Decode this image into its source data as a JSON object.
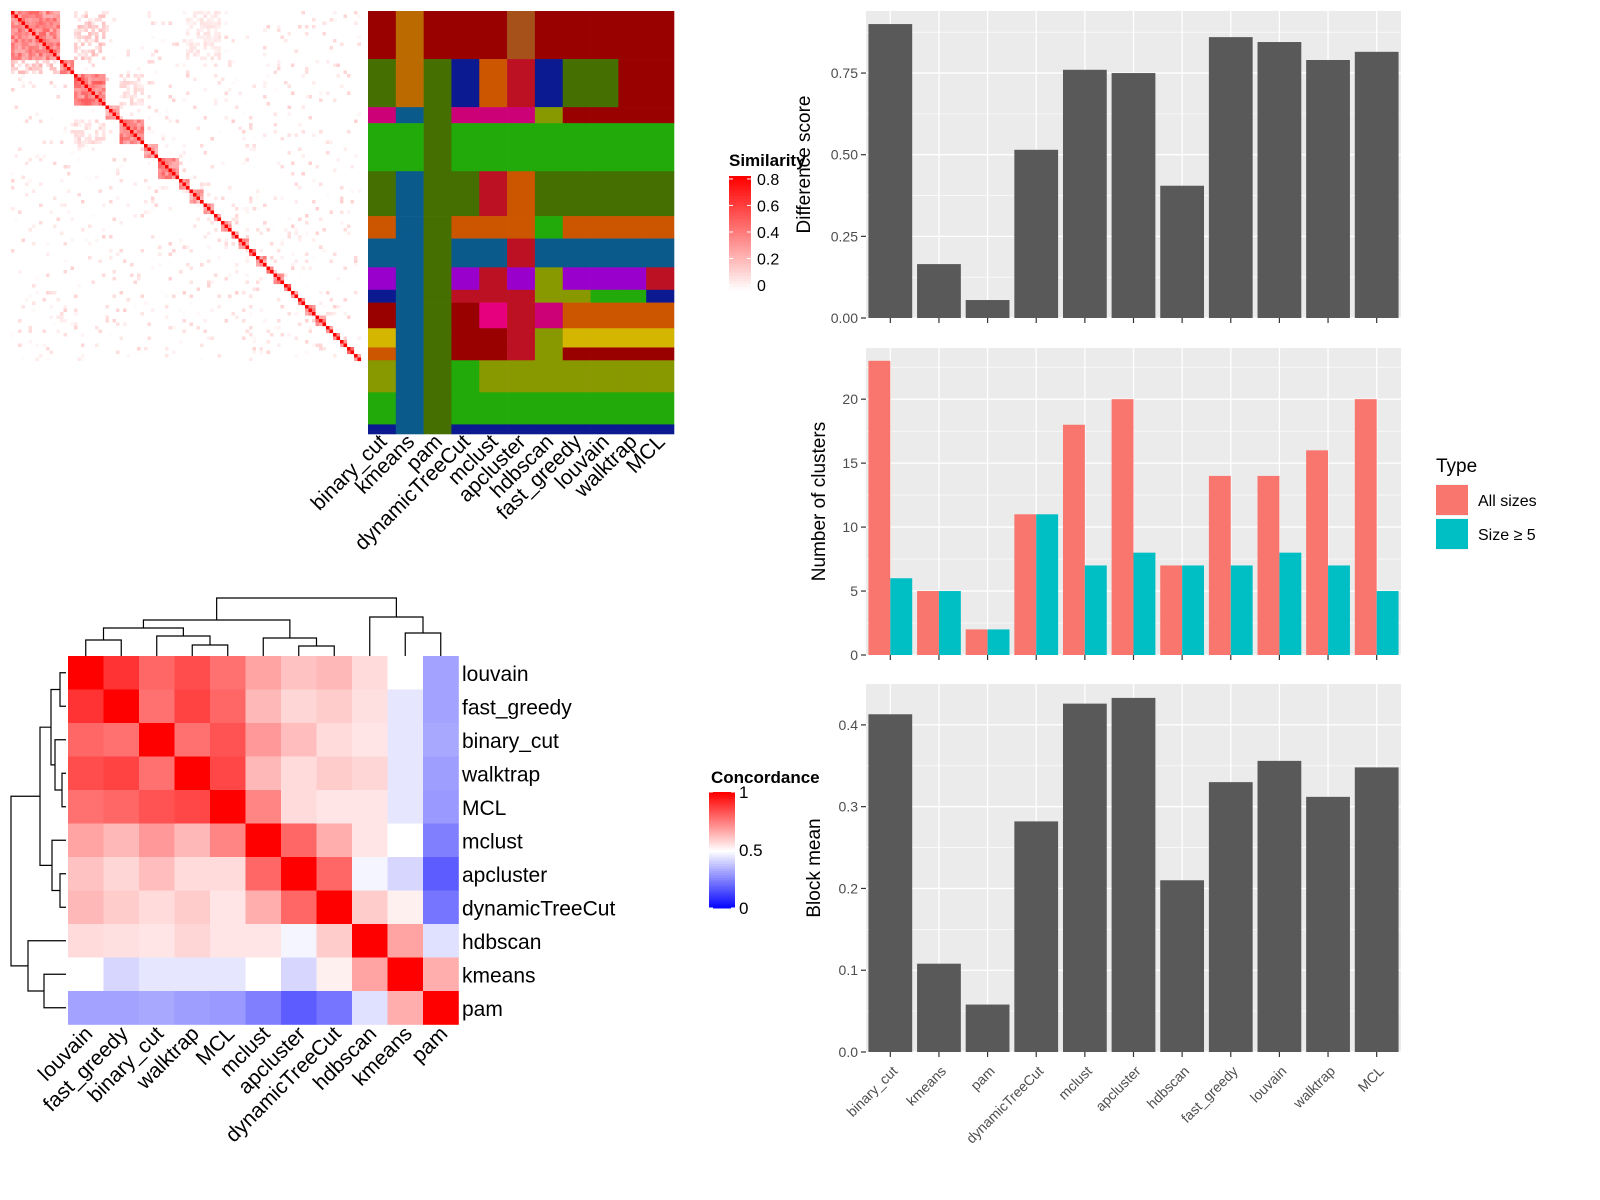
{
  "chart_data": [
    {
      "type": "heatmap",
      "panel": "similarity",
      "legend_title": "Similarity",
      "color_ramp": [
        "#ffffff",
        "#ff0000"
      ],
      "legend_ticks": [
        "0.8",
        "0.6",
        "0.4",
        "0.2",
        "0"
      ],
      "cell_ticks": [
        0.8,
        0.6,
        0.4,
        0.2,
        0
      ],
      "blocks": [
        [
          0,
          14,
          0.55
        ],
        [
          14,
          18,
          0.5
        ],
        [
          18,
          27,
          0.6
        ],
        [
          27,
          31,
          0.45
        ],
        [
          31,
          38,
          0.55
        ],
        [
          38,
          42,
          0.5
        ],
        [
          42,
          48,
          0.55
        ],
        [
          48,
          51,
          0.5
        ],
        [
          51,
          55,
          0.45
        ],
        [
          55,
          58,
          0.5
        ],
        [
          58,
          60,
          0.55
        ],
        [
          60,
          63,
          0.5
        ],
        [
          63,
          65,
          0.6
        ],
        [
          65,
          68,
          0.5
        ],
        [
          68,
          70,
          0.55
        ],
        [
          70,
          73,
          0.5
        ],
        [
          73,
          75,
          0.6
        ],
        [
          75,
          78,
          0.5
        ],
        [
          78,
          80,
          0.6
        ],
        [
          80,
          82,
          0.5
        ],
        [
          82,
          84,
          0.55
        ],
        [
          84,
          87,
          0.5
        ],
        [
          87,
          90,
          0.55
        ],
        [
          90,
          92,
          0.5
        ],
        [
          92,
          94,
          0.6
        ],
        [
          94,
          96,
          0.5
        ],
        [
          96,
          98,
          0.6
        ],
        [
          98,
          100,
          0.6
        ]
      ]
    },
    {
      "type": "heatmap",
      "panel": "cluster_assignments",
      "columns": [
        "binary_cut",
        "kmeans",
        "pam",
        "dynamicTreeCut",
        "mclust",
        "apcluster",
        "hdbscan",
        "fast_greedy",
        "louvain",
        "walktrap",
        "MCL"
      ],
      "colors": {
        "darkred": "#990000",
        "red": "#bb1122",
        "orange": "#cc5500",
        "olive": "#456f00",
        "green": "#22aa0a",
        "lime": "#889900",
        "magenta": "#cc0077",
        "purple": "#9900cc",
        "blue": "#0b5a8c",
        "navy": "#0b1a90",
        "brown": "#a6501a",
        "amber": "#bb6a00",
        "yellow": "#d4b500",
        "pink": "#e6007e"
      },
      "row_groups": [
        {
          "rows": 15,
          "cells": [
            "darkred",
            "amber",
            "darkred",
            "darkred",
            "darkred",
            "brown",
            "darkred",
            "darkred",
            "darkred",
            "darkred",
            "darkred"
          ]
        },
        {
          "rows": 15,
          "cells": [
            "olive",
            "amber",
            "olive",
            "navy",
            "orange",
            "red",
            "navy",
            "olive",
            "olive",
            "darkred",
            "darkred"
          ]
        },
        {
          "rows": 5,
          "cells": [
            "magenta",
            "blue",
            "olive",
            "magenta",
            "magenta",
            "magenta",
            "lime",
            "darkred",
            "darkred",
            "darkred",
            "darkred"
          ]
        },
        {
          "rows": 15,
          "cells": [
            "green",
            "green",
            "olive",
            "green",
            "green",
            "green",
            "green",
            "green",
            "green",
            "green",
            "green"
          ]
        },
        {
          "rows": 14,
          "cells": [
            "olive",
            "blue",
            "olive",
            "olive",
            "red",
            "orange",
            "olive",
            "olive",
            "olive",
            "olive",
            "olive"
          ]
        },
        {
          "rows": 7,
          "cells": [
            "orange",
            "blue",
            "olive",
            "orange",
            "orange",
            "orange",
            "green",
            "orange",
            "orange",
            "orange",
            "orange"
          ]
        },
        {
          "rows": 9,
          "cells": [
            "blue",
            "blue",
            "olive",
            "blue",
            "blue",
            "red",
            "blue",
            "blue",
            "blue",
            "blue",
            "blue"
          ]
        },
        {
          "rows": 7,
          "cells": [
            "purple",
            "blue",
            "olive",
            "purple",
            "red",
            "purple",
            "lime",
            "purple",
            "purple",
            "purple",
            "red"
          ]
        },
        {
          "rows": 4,
          "cells": [
            "navy",
            "blue",
            "olive",
            "red",
            "red",
            "red",
            "lime",
            "lime",
            "green",
            "green",
            "navy"
          ]
        },
        {
          "rows": 8,
          "cells": [
            "darkred",
            "blue",
            "olive",
            "darkred",
            "pink",
            "red",
            "magenta",
            "orange",
            "orange",
            "orange",
            "orange"
          ]
        },
        {
          "rows": 6,
          "cells": [
            "yellow",
            "blue",
            "olive",
            "darkred",
            "darkred",
            "red",
            "lime",
            "yellow",
            "yellow",
            "yellow",
            "yellow"
          ]
        },
        {
          "rows": 4,
          "cells": [
            "orange",
            "blue",
            "olive",
            "darkred",
            "darkred",
            "red",
            "lime",
            "darkred",
            "darkred",
            "darkred",
            "darkred"
          ]
        },
        {
          "rows": 10,
          "cells": [
            "lime",
            "blue",
            "olive",
            "green",
            "lime",
            "lime",
            "lime",
            "lime",
            "lime",
            "lime",
            "lime"
          ]
        },
        {
          "rows": 10,
          "cells": [
            "green",
            "blue",
            "olive",
            "green",
            "green",
            "green",
            "green",
            "green",
            "green",
            "green",
            "green"
          ]
        },
        {
          "rows": 3,
          "cells": [
            "navy",
            "blue",
            "olive",
            "navy",
            "navy",
            "navy",
            "navy",
            "navy",
            "navy",
            "navy",
            "navy"
          ]
        }
      ]
    },
    {
      "type": "heatmap",
      "panel": "concordance",
      "legend_title": "Concordance",
      "legend_ticks": [
        "1",
        "0.5",
        "0"
      ],
      "color_ramp": [
        "#0000ff",
        "#ffffff",
        "#ff0000"
      ],
      "rows": [
        "louvain",
        "fast_greedy",
        "binary_cut",
        "walktrap",
        "MCL",
        "mclust",
        "apcluster",
        "dynamicTreeCut",
        "hdbscan",
        "kmeans",
        "pam"
      ],
      "columns": [
        "louvain",
        "fast_greedy",
        "binary_cut",
        "walktrap",
        "MCL",
        "mclust",
        "apcluster",
        "dynamicTreeCut",
        "hdbscan",
        "kmeans",
        "pam"
      ],
      "values": [
        [
          1.0,
          0.9,
          0.8,
          0.85,
          0.78,
          0.68,
          0.62,
          0.64,
          0.57,
          0.5,
          0.32
        ],
        [
          0.9,
          1.0,
          0.78,
          0.87,
          0.8,
          0.64,
          0.58,
          0.6,
          0.56,
          0.45,
          0.32
        ],
        [
          0.8,
          0.78,
          1.0,
          0.78,
          0.84,
          0.7,
          0.63,
          0.57,
          0.55,
          0.45,
          0.33
        ],
        [
          0.85,
          0.87,
          0.78,
          1.0,
          0.86,
          0.64,
          0.57,
          0.6,
          0.58,
          0.45,
          0.31
        ],
        [
          0.78,
          0.8,
          0.84,
          0.86,
          1.0,
          0.74,
          0.57,
          0.55,
          0.55,
          0.45,
          0.3
        ],
        [
          0.68,
          0.64,
          0.7,
          0.64,
          0.74,
          1.0,
          0.8,
          0.66,
          0.55,
          0.5,
          0.25
        ],
        [
          0.62,
          0.58,
          0.63,
          0.57,
          0.57,
          0.8,
          1.0,
          0.8,
          0.48,
          0.42,
          0.18
        ],
        [
          0.64,
          0.6,
          0.57,
          0.6,
          0.55,
          0.66,
          0.8,
          1.0,
          0.6,
          0.53,
          0.23
        ],
        [
          0.57,
          0.56,
          0.55,
          0.58,
          0.55,
          0.55,
          0.48,
          0.6,
          1.0,
          0.68,
          0.44
        ],
        [
          0.5,
          0.42,
          0.45,
          0.45,
          0.45,
          0.5,
          0.42,
          0.53,
          0.68,
          1.0,
          0.66
        ],
        [
          0.32,
          0.32,
          0.33,
          0.31,
          0.3,
          0.25,
          0.18,
          0.23,
          0.44,
          0.66,
          1.0
        ]
      ]
    },
    {
      "type": "bar",
      "panel": "difference_score",
      "categories": [
        "binary_cut",
        "kmeans",
        "pam",
        "dynamicTreeCut",
        "mclust",
        "apcluster",
        "hdbscan",
        "fast_greedy",
        "louvain",
        "walktrap",
        "MCL"
      ],
      "values": [
        0.9,
        0.165,
        0.055,
        0.515,
        0.76,
        0.75,
        0.405,
        0.86,
        0.845,
        0.79,
        0.815
      ],
      "ylabel": "Difference score",
      "ylim": [
        0,
        0.94
      ],
      "yticks": [
        0,
        0.25,
        0.5,
        0.75
      ],
      "ytick_labels": [
        "0.00",
        "0.25",
        "0.50",
        "0.75"
      ],
      "bar_color": "#595959",
      "panel_background": "#ebebeb",
      "grid": true
    },
    {
      "type": "bar",
      "panel": "number_of_clusters",
      "categories": [
        "binary_cut",
        "kmeans",
        "pam",
        "dynamicTreeCut",
        "mclust",
        "apcluster",
        "hdbscan",
        "fast_greedy",
        "louvain",
        "walktrap",
        "MCL"
      ],
      "series": [
        {
          "name": "All sizes",
          "values": [
            23,
            5,
            2,
            11,
            18,
            20,
            7,
            14,
            14,
            16,
            20
          ],
          "color": "#f8766d"
        },
        {
          "name": "Size ≥ 5",
          "values": [
            6,
            5,
            2,
            11,
            7,
            8,
            7,
            7,
            8,
            7,
            5
          ],
          "color": "#00bfc4"
        }
      ],
      "ylabel": "Number of clusters",
      "ylim": [
        0,
        24
      ],
      "yticks": [
        0,
        5,
        10,
        15,
        20
      ],
      "ytick_labels": [
        "0",
        "5",
        "10",
        "15",
        "20"
      ],
      "legend_title": "Type",
      "legend_position": "right",
      "panel_background": "#ebebeb",
      "grid": true
    },
    {
      "type": "bar",
      "panel": "block_mean",
      "categories": [
        "binary_cut",
        "kmeans",
        "pam",
        "dynamicTreeCut",
        "mclust",
        "apcluster",
        "hdbscan",
        "fast_greedy",
        "louvain",
        "walktrap",
        "MCL"
      ],
      "values": [
        0.413,
        0.108,
        0.058,
        0.282,
        0.426,
        0.433,
        0.21,
        0.33,
        0.356,
        0.312,
        0.348
      ],
      "ylabel": "Block mean",
      "ylim": [
        0,
        0.45
      ],
      "yticks": [
        0,
        0.1,
        0.2,
        0.3,
        0.4
      ],
      "ytick_labels": [
        "0.0",
        "0.1",
        "0.2",
        "0.3",
        "0.4"
      ],
      "bar_color": "#595959",
      "panel_background": "#ebebeb",
      "grid": true
    }
  ]
}
